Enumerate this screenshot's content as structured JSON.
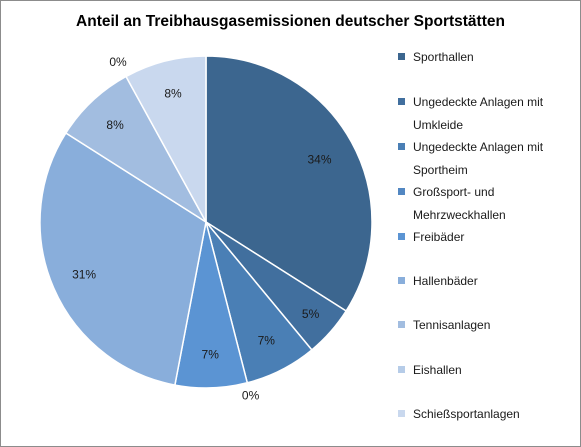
{
  "chart_data": {
    "type": "pie",
    "title": "Anteil an Treibhausgasemissionen deutscher Sportstätten",
    "legend_position": "right",
    "slices": [
      {
        "label": "Sporthallen",
        "value": 34,
        "value_label": "34%",
        "color": "#3c668f"
      },
      {
        "label": "Ungedeckte Anlagen mit Umkleide",
        "value": 5,
        "value_label": "5%",
        "color": "#416f9e"
      },
      {
        "label": "Ungedeckte Anlagen mit Sportheim",
        "value": 7,
        "value_label": "7%",
        "color": "#4a7fb5"
      },
      {
        "label": "Großsport- und Mehrzweckhallen",
        "value": 0,
        "value_label": "0%",
        "color": "#5287c2"
      },
      {
        "label": "Freibäder",
        "value": 7,
        "value_label": "7%",
        "color": "#5b94d3"
      },
      {
        "label": "Hallenbäder",
        "value": 31,
        "value_label": "31%",
        "color": "#89aedb"
      },
      {
        "label": "Tennisanlagen",
        "value": 8,
        "value_label": "8%",
        "color": "#a2bde0"
      },
      {
        "label": "Eishallen",
        "value": 0,
        "value_label": "0%",
        "color": "#b6cce8"
      },
      {
        "label": "Schießsportanlagen",
        "value": 8,
        "value_label": "8%",
        "color": "#c9d8ee"
      }
    ]
  }
}
